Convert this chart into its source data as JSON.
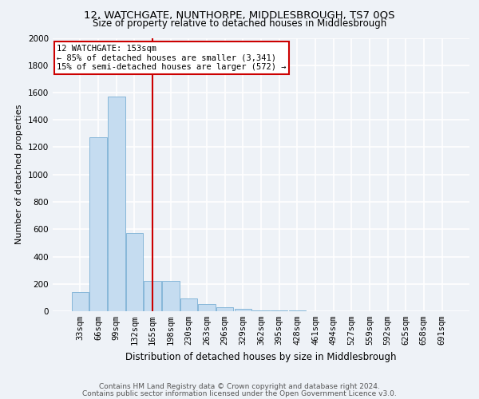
{
  "title": "12, WATCHGATE, NUNTHORPE, MIDDLESBROUGH, TS7 0QS",
  "subtitle": "Size of property relative to detached houses in Middlesbrough",
  "xlabel": "Distribution of detached houses by size in Middlesbrough",
  "ylabel": "Number of detached properties",
  "footer_line1": "Contains HM Land Registry data © Crown copyright and database right 2024.",
  "footer_line2": "Contains public sector information licensed under the Open Government Licence v3.0.",
  "categories": [
    "33sqm",
    "66sqm",
    "99sqm",
    "132sqm",
    "165sqm",
    "198sqm",
    "230sqm",
    "263sqm",
    "296sqm",
    "329sqm",
    "362sqm",
    "395sqm",
    "428sqm",
    "461sqm",
    "494sqm",
    "527sqm",
    "559sqm",
    "592sqm",
    "625sqm",
    "658sqm",
    "691sqm"
  ],
  "values": [
    140,
    1275,
    1570,
    570,
    220,
    220,
    95,
    50,
    28,
    15,
    8,
    5,
    3,
    2,
    1,
    1,
    0,
    0,
    0,
    0,
    0
  ],
  "bar_color": "#c5dcf0",
  "bar_edge_color": "#7ab0d4",
  "bg_color": "#eef2f7",
  "grid_color": "#ffffff",
  "vline_color": "#cc0000",
  "vline_x": 4.0,
  "annotation_text": "12 WATCHGATE: 153sqm\n← 85% of detached houses are smaller (3,341)\n15% of semi-detached houses are larger (572) →",
  "annotation_box_facecolor": "#ffffff",
  "annotation_box_edgecolor": "#cc0000",
  "ylim": [
    0,
    2000
  ],
  "yticks": [
    0,
    200,
    400,
    600,
    800,
    1000,
    1200,
    1400,
    1600,
    1800,
    2000
  ],
  "title_fontsize": 9.5,
  "subtitle_fontsize": 8.5,
  "ylabel_fontsize": 8,
  "xlabel_fontsize": 8.5,
  "tick_fontsize": 7.5,
  "annotation_fontsize": 7.5,
  "footer_fontsize": 6.5,
  "footer_color": "#555555"
}
